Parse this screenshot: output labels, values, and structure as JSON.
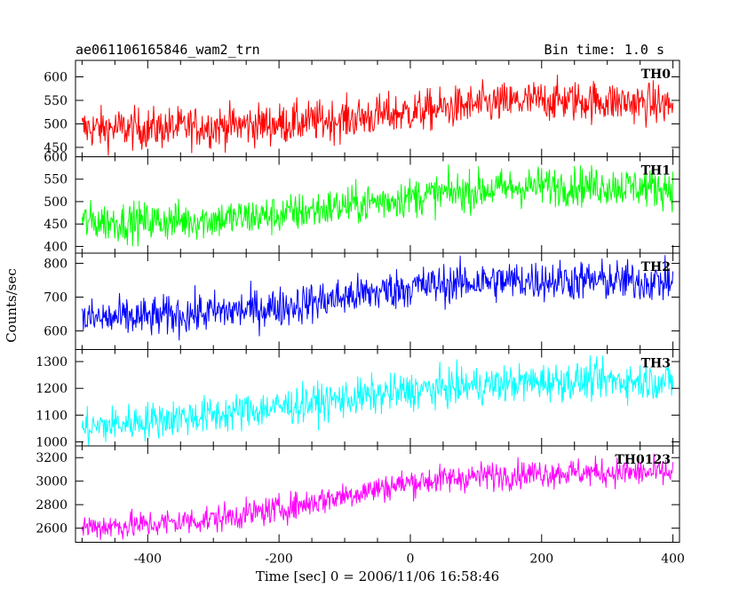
{
  "header": {
    "title": "ae061106165846_wam2_trn",
    "bin_time": "Bin time: 1.0 s"
  },
  "chart_data": {
    "type": "line",
    "xlabel": "Time [sec] 0 = 2006/11/06 16:58:46",
    "ylabel": "Counts/sec",
    "xlim": [
      -510,
      410
    ],
    "xticks": [
      -400,
      -200,
      0,
      200,
      400
    ],
    "x_start": -500,
    "x_end": 400,
    "x_step": 1,
    "grid": false,
    "panels": [
      {
        "name": "TH0",
        "color": "#ff0000",
        "ylim": [
          430,
          635
        ],
        "yticks": [
          450,
          500,
          550,
          600
        ],
        "trend_x": [
          -500,
          -400,
          -300,
          -200,
          -100,
          0,
          100,
          200,
          300,
          400
        ],
        "trend_y": [
          490,
          490,
          495,
          500,
          510,
          525,
          540,
          550,
          548,
          540
        ],
        "noise": 22
      },
      {
        "name": "TH1",
        "color": "#00ff00",
        "ylim": [
          385,
          600
        ],
        "yticks": [
          400,
          450,
          500,
          550,
          600
        ],
        "trend_x": [
          -500,
          -400,
          -300,
          -200,
          -100,
          0,
          100,
          200,
          300,
          400
        ],
        "trend_y": [
          455,
          455,
          460,
          470,
          490,
          510,
          525,
          535,
          535,
          530
        ],
        "noise": 22
      },
      {
        "name": "TH2",
        "color": "#0000ff",
        "ylim": [
          545,
          830
        ],
        "yticks": [
          600,
          700,
          800
        ],
        "trend_x": [
          -500,
          -400,
          -300,
          -200,
          -100,
          0,
          100,
          200,
          300,
          400
        ],
        "trend_y": [
          635,
          640,
          655,
          670,
          700,
          730,
          745,
          750,
          748,
          745
        ],
        "noise": 30
      },
      {
        "name": "TH3",
        "color": "#00ffff",
        "ylim": [
          985,
          1345
        ],
        "yticks": [
          1000,
          1100,
          1200,
          1300
        ],
        "trend_x": [
          -500,
          -400,
          -300,
          -200,
          -100,
          0,
          100,
          200,
          300,
          400
        ],
        "trend_y": [
          1050,
          1080,
          1100,
          1130,
          1160,
          1190,
          1210,
          1225,
          1230,
          1225
        ],
        "noise": 35
      },
      {
        "name": "TH0123",
        "color": "#ff00ff",
        "ylim": [
          2480,
          3300
        ],
        "yticks": [
          2600,
          2800,
          3000,
          3200
        ],
        "trend_x": [
          -500,
          -400,
          -300,
          -200,
          -100,
          0,
          100,
          200,
          300,
          400
        ],
        "trend_y": [
          2610,
          2630,
          2680,
          2760,
          2880,
          2990,
          3040,
          3070,
          3075,
          3070
        ],
        "noise": 60
      }
    ]
  }
}
